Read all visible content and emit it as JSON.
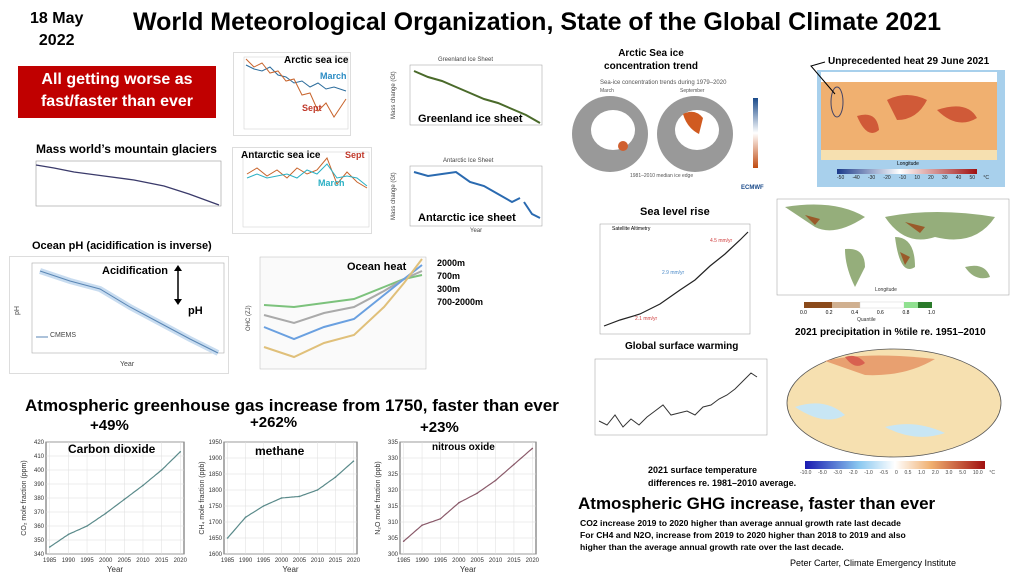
{
  "date": {
    "line1": "18 May",
    "line2": "2022"
  },
  "title": "World Meteorological Organization, State of the Global Climate 2021",
  "banner": {
    "line1": "All getting worse as",
    "line2": "fast/faster than ever",
    "color": "#c00000"
  },
  "panels": {
    "glaciers": {
      "title": "Mass world’s mountain glaciers"
    },
    "ocean_ph": {
      "title": "Ocean pH (acidification is inverse)",
      "acidification": "Acidification",
      "ph": "pH",
      "legend": "CMEMS",
      "xlabel": "Year",
      "ylabel": "pH"
    },
    "arctic_sea_ice": {
      "title": "Arctic sea ice",
      "march": "March",
      "sept": "Sept"
    },
    "antarctic_sea_ice": {
      "title": "Antarctic sea ice",
      "march": "March",
      "sept": "Sept"
    },
    "greenland": {
      "title": "Greenland ice sheet",
      "chart_title": "Greenland Ice Sheet",
      "ylabel": "Mass change (Gt)"
    },
    "antarctic_sheet": {
      "title": "Antarctic ice sheet",
      "chart_title": "Antarctic Ice Sheet",
      "ylabel": "Mass change (Gt)",
      "xlabel": "Year"
    },
    "ocean_heat": {
      "title": "Ocean heat",
      "depths": [
        "2000m",
        "700m",
        "300m",
        "700-2000m"
      ],
      "ylabel": "OHC (ZJ)"
    },
    "arctic_concentration": {
      "title_line1": "Arctic Sea ice",
      "title_line2": "concentration trend",
      "chart_title": "Sea-ice concentration trends during 1979–2020",
      "march": "March",
      "september": "September",
      "edge": "1981–2010 median ice edge",
      "logo": "ECMWF"
    },
    "heat": {
      "title": "Unprecedented heat 29 June 2021",
      "xlabel": "Longitude",
      "scale": [
        "-50",
        "-40",
        "-30",
        "-20",
        "-10",
        "10",
        "20",
        "30",
        "40",
        "50",
        "°C"
      ]
    },
    "sea_level": {
      "title": "Sea level rise",
      "legend": "Satellite Altimetry",
      "rate1": "2.1 mm/yr",
      "rate2": "2.9 mm/yr",
      "rate3": "4.5 mm/yr"
    },
    "precipitation": {
      "caption": "2021  precipitation in %tile re. 1951–2010",
      "xlabel": "Longitude",
      "scale_label": "Quantile",
      "ticks": [
        "0.0",
        "0.2",
        "0.4",
        "0.6",
        "0.8",
        "1.0"
      ]
    },
    "surface_warming": {
      "title": "Global surface warming"
    },
    "surface_temp": {
      "caption_line1": "2021 surface temperature",
      "caption_line2": "differences re. 1981–2010 average.",
      "ticks": [
        "-10.0",
        "-5.0",
        "-3.0",
        "-2.0",
        "-1.0",
        "-0.5",
        "0",
        "0.5",
        "1.0",
        "2.0",
        "3.0",
        "5.0",
        "10.0",
        "°C"
      ]
    }
  },
  "ghg": {
    "heading": "Atmospheric greenhouse gas  increase from 1750, faster than ever",
    "co2": {
      "pct": "+49%",
      "label": "Carbon dioxide"
    },
    "ch4": {
      "pct": "+262%",
      "label": "methane"
    },
    "n2o": {
      "pct": "+23%",
      "label": "nitrous oxide"
    }
  },
  "summary": {
    "heading": "Atmospheric GHG  increase, faster than ever",
    "line1": "CO2 increase 2019  to 2020   higher than average annual growth rate last decade",
    "line2": "For CH4 and N2O, increase from 2019  to 2020  higher than  2018  to 2019  and also",
    "line3": "higher than the average annual growth rate over the last decade.",
    "credit": "Peter Carter, Climate  Emergency Institute"
  },
  "chart_data": [
    {
      "type": "line",
      "xlabel": "Year",
      "ylabel": "CO₂ mole fraction (ppm)",
      "xlim": [
        1984,
        2021
      ],
      "ylim": [
        340,
        420
      ],
      "x": [
        1985,
        1990,
        1995,
        2000,
        2005,
        2010,
        2015,
        2020
      ],
      "values": [
        345,
        354,
        360,
        369,
        379,
        389,
        400,
        413
      ],
      "xticks": [
        1985,
        1990,
        1995,
        2000,
        2005,
        2010,
        2015,
        2020
      ],
      "yticks": [
        340,
        350,
        360,
        370,
        380,
        390,
        400,
        410,
        420
      ],
      "grid": true,
      "color": "#5a8a8a"
    },
    {
      "type": "line",
      "xlabel": "Year",
      "ylabel": "CH₄ mole fraction (ppb)",
      "xlim": [
        1984,
        2021
      ],
      "ylim": [
        1600,
        1950
      ],
      "x": [
        1985,
        1990,
        1995,
        2000,
        2005,
        2010,
        2015,
        2020
      ],
      "values": [
        1650,
        1715,
        1750,
        1775,
        1780,
        1800,
        1840,
        1890
      ],
      "xticks": [
        1985,
        1990,
        1995,
        2000,
        2005,
        2010,
        2015,
        2020
      ],
      "yticks": [
        1600,
        1650,
        1700,
        1750,
        1800,
        1850,
        1900,
        1950
      ],
      "grid": true,
      "color": "#5a8a8a"
    },
    {
      "type": "line",
      "xlabel": "Year",
      "ylabel": "N₂O mole fraction (ppb)",
      "xlim": [
        1984,
        2021
      ],
      "ylim": [
        300,
        335
      ],
      "x": [
        1985,
        1990,
        1995,
        2000,
        2005,
        2010,
        2015,
        2020
      ],
      "values": [
        304,
        309,
        311,
        316,
        319,
        323,
        328,
        333
      ],
      "xticks": [
        1985,
        1990,
        1995,
        2000,
        2005,
        2010,
        2015,
        2020
      ],
      "yticks": [
        300,
        305,
        310,
        315,
        320,
        325,
        330,
        335
      ],
      "grid": true,
      "color": "#8a5a6a"
    }
  ]
}
